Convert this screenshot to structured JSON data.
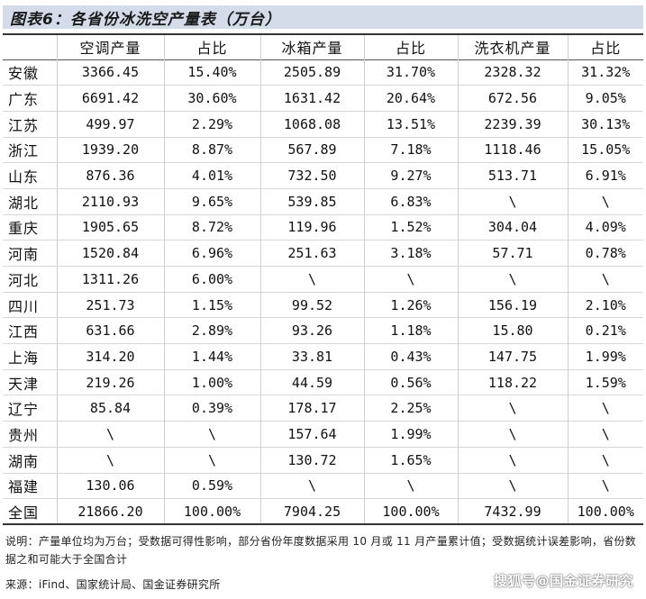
{
  "title": "图表6：各省份冰洗空产量表（万台）",
  "headers": [
    "",
    "空调产量",
    "占比",
    "冰箱产量",
    "占比",
    "洗衣机产量",
    "占比"
  ],
  "rows": [
    [
      "安徽",
      "3366.45",
      "15.40%",
      "2505.89",
      "31.70%",
      "2328.32",
      "31.32%"
    ],
    [
      "广东",
      "6691.42",
      "30.60%",
      "1631.42",
      "20.64%",
      "672.56",
      "9.05%"
    ],
    [
      "江苏",
      "499.97",
      "2.29%",
      "1068.08",
      "13.51%",
      "2239.39",
      "30.13%"
    ],
    [
      "浙江",
      "1939.20",
      "8.87%",
      "567.89",
      "7.18%",
      "1118.46",
      "15.05%"
    ],
    [
      "山东",
      "876.36",
      "4.01%",
      "732.50",
      "9.27%",
      "513.71",
      "6.91%"
    ],
    [
      "湖北",
      "2110.93",
      "9.65%",
      "539.85",
      "6.83%",
      "\\",
      "\\"
    ],
    [
      "重庆",
      "1905.65",
      "8.72%",
      "119.96",
      "1.52%",
      "304.04",
      "4.09%"
    ],
    [
      "河南",
      "1520.84",
      "6.96%",
      "251.63",
      "3.18%",
      "57.71",
      "0.78%"
    ],
    [
      "河北",
      "1311.26",
      "6.00%",
      "\\",
      "\\",
      "\\",
      "\\"
    ],
    [
      "四川",
      "251.73",
      "1.15%",
      "99.52",
      "1.26%",
      "156.19",
      "2.10%"
    ],
    [
      "江西",
      "631.66",
      "2.89%",
      "93.26",
      "1.18%",
      "15.80",
      "0.21%"
    ],
    [
      "上海",
      "314.20",
      "1.44%",
      "33.81",
      "0.43%",
      "147.75",
      "1.99%"
    ],
    [
      "天津",
      "219.26",
      "1.00%",
      "44.59",
      "0.56%",
      "118.22",
      "1.59%"
    ],
    [
      "辽宁",
      "85.84",
      "0.39%",
      "178.17",
      "2.25%",
      "\\",
      "\\"
    ],
    [
      "贵州",
      "\\",
      "\\",
      "157.64",
      "1.99%",
      "\\",
      "\\"
    ],
    [
      "湖南",
      "\\",
      "\\",
      "130.72",
      "1.65%",
      "\\",
      "\\"
    ],
    [
      "福建",
      "130.06",
      "0.59%",
      "\\",
      "\\",
      "\\",
      "\\"
    ],
    [
      "全国",
      "21866.20",
      "100.00%",
      "7904.25",
      "100.00%",
      "7432.99",
      "100.00%"
    ]
  ],
  "note": "说明：产量单位均为万台；受数据可得性影响，部分省份年度数据采用 10 月或 11 月产量累计值；受数据统计误差影响，省份数据之和可能大于全国合计",
  "source": "来源：iFind、国家统计局、国金证券研究所",
  "watermark": "搜狐号@国金证券研究",
  "colors": {
    "title_bg": "#d4dcea",
    "rule": "#333333",
    "row_divider": "#d7d7d7"
  }
}
